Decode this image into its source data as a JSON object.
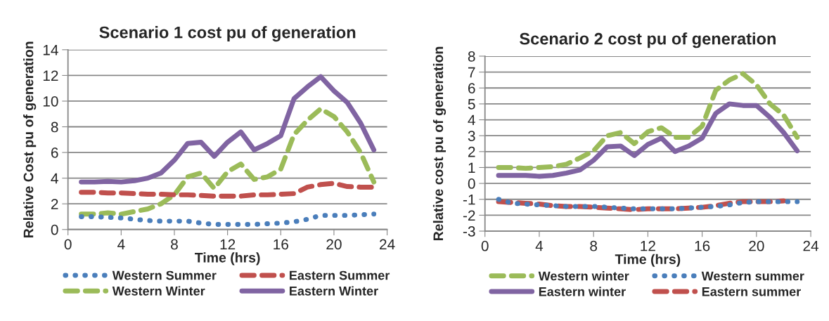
{
  "chart_data": [
    {
      "type": "line",
      "title": "Scenario 1 cost pu of generation",
      "xlabel": "Time (hrs)",
      "ylabel": "Relative Cost pu of generation",
      "x": [
        1,
        2,
        3,
        4,
        5,
        6,
        7,
        8,
        9,
        10,
        11,
        12,
        13,
        14,
        15,
        16,
        17,
        18,
        19,
        20,
        21,
        22,
        23
      ],
      "xlim": [
        0,
        24
      ],
      "xticks": [
        0,
        4,
        8,
        12,
        16,
        20,
        24
      ],
      "ylim": [
        0,
        14
      ],
      "yticks": [
        0,
        2,
        4,
        6,
        8,
        10,
        12,
        14
      ],
      "grid": "y",
      "legend": "bottom",
      "series": [
        {
          "name": "Western Summer",
          "color": "#4a7ebb",
          "line_style": "dotted",
          "values": [
            1.0,
            1.0,
            0.95,
            0.9,
            0.8,
            0.7,
            0.65,
            0.65,
            0.65,
            0.5,
            0.4,
            0.4,
            0.4,
            0.4,
            0.45,
            0.5,
            0.6,
            0.8,
            1.1,
            1.1,
            1.1,
            1.15,
            1.2
          ]
        },
        {
          "name": "Western Winter",
          "color": "#9bbb59",
          "line_style": "dashed",
          "values": [
            1.2,
            1.2,
            1.3,
            1.2,
            1.4,
            1.6,
            2.0,
            2.7,
            4.1,
            4.4,
            3.2,
            4.5,
            5.1,
            3.9,
            4.1,
            4.7,
            7.4,
            8.5,
            9.4,
            8.8,
            7.6,
            6.0,
            3.7
          ]
        },
        {
          "name": "Eastern Summer",
          "color": "#c0504d",
          "line_style": "dashed",
          "values": [
            2.9,
            2.9,
            2.85,
            2.85,
            2.8,
            2.75,
            2.75,
            2.7,
            2.7,
            2.65,
            2.6,
            2.6,
            2.6,
            2.7,
            2.7,
            2.75,
            2.8,
            3.3,
            3.5,
            3.6,
            3.35,
            3.3,
            3.3
          ]
        },
        {
          "name": "Eastern Winter",
          "color": "#8064a2",
          "line_style": "solid",
          "values": [
            3.7,
            3.7,
            3.75,
            3.7,
            3.8,
            4.0,
            4.4,
            5.4,
            6.7,
            6.8,
            5.7,
            6.8,
            7.6,
            6.2,
            6.7,
            7.3,
            10.2,
            11.1,
            11.9,
            10.8,
            9.9,
            8.3,
            6.2
          ]
        }
      ]
    },
    {
      "type": "line",
      "title": "Scenario 2 cost pu of generation",
      "xlabel": "Time (hrs)",
      "ylabel": "Relative cost pu of generation",
      "x": [
        1,
        2,
        3,
        4,
        5,
        6,
        7,
        8,
        9,
        10,
        11,
        12,
        13,
        14,
        15,
        16,
        17,
        18,
        19,
        20,
        21,
        22,
        23
      ],
      "xlim": [
        0,
        24
      ],
      "xticks": [
        0,
        4,
        8,
        12,
        16,
        20,
        24
      ],
      "ylim": [
        -3,
        8
      ],
      "yticks": [
        -3,
        -2,
        -1,
        0,
        1,
        2,
        3,
        4,
        5,
        6,
        7,
        8
      ],
      "grid": "y",
      "legend": "bottom",
      "series": [
        {
          "name": "Western winter",
          "color": "#9bbb59",
          "line_style": "dashed",
          "values": [
            1.0,
            1.0,
            0.95,
            1.0,
            1.05,
            1.2,
            1.6,
            2.05,
            3.0,
            3.2,
            2.5,
            3.25,
            3.5,
            2.9,
            2.9,
            3.6,
            5.85,
            6.5,
            6.9,
            6.2,
            5.0,
            4.3,
            2.9
          ]
        },
        {
          "name": "Eastern winter",
          "color": "#8064a2",
          "line_style": "solid",
          "values": [
            0.5,
            0.5,
            0.5,
            0.45,
            0.5,
            0.65,
            0.85,
            1.45,
            2.3,
            2.35,
            1.75,
            2.45,
            2.85,
            2.0,
            2.35,
            2.85,
            4.4,
            5.0,
            4.9,
            4.9,
            4.15,
            3.2,
            2.05
          ]
        },
        {
          "name": "Western summer",
          "color": "#4a7ebb",
          "line_style": "dotted",
          "values": [
            -1.0,
            -1.25,
            -1.3,
            -1.35,
            -1.4,
            -1.45,
            -1.45,
            -1.45,
            -1.5,
            -1.55,
            -1.6,
            -1.6,
            -1.6,
            -1.6,
            -1.55,
            -1.5,
            -1.45,
            -1.35,
            -1.2,
            -1.15,
            -1.15,
            -1.15,
            -1.15
          ]
        },
        {
          "name": "Eastern summer",
          "color": "#c0504d",
          "line_style": "dashed",
          "values": [
            -1.15,
            -1.2,
            -1.25,
            -1.3,
            -1.4,
            -1.45,
            -1.45,
            -1.5,
            -1.55,
            -1.6,
            -1.65,
            -1.6,
            -1.6,
            -1.6,
            -1.55,
            -1.5,
            -1.4,
            -1.25,
            -1.15,
            -1.15,
            -1.15,
            -1.1,
            null
          ]
        }
      ]
    }
  ]
}
